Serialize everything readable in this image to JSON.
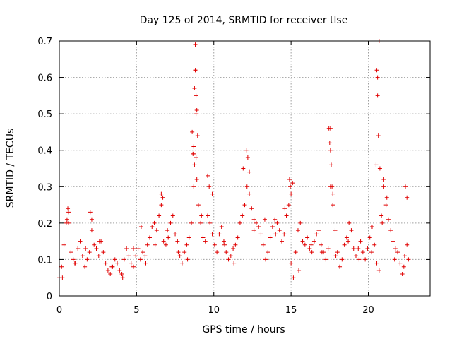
{
  "chart_data": {
    "type": "scatter",
    "title": "Day 125 of 2014, SRMTID for receiver tlse",
    "xlabel": "GPS time / hours",
    "ylabel": "SRMTID / TECUs",
    "xlim": [
      0,
      24
    ],
    "ylim": [
      0,
      0.7
    ],
    "xticks": [
      "0",
      "5",
      "10",
      "15",
      "20"
    ],
    "yticks": [
      "0",
      "0.1",
      "0.2",
      "0.3",
      "0.4",
      "0.5",
      "0.6",
      "0.7"
    ],
    "grid": true,
    "marker": "plus",
    "series": [
      {
        "name": "SRMTID",
        "color": "#e00000",
        "x": [
          0.0,
          0.15,
          0.3,
          0.45,
          0.6,
          0.75,
          0.9,
          1.05,
          1.2,
          1.35,
          1.5,
          1.65,
          1.8,
          1.95,
          2.1,
          2.25,
          2.4,
          2.55,
          2.7,
          2.85,
          3.0,
          3.15,
          3.3,
          3.45,
          3.6,
          3.75,
          3.9,
          4.05,
          4.2,
          4.35,
          4.5,
          4.65,
          4.8,
          4.95,
          5.1,
          5.25,
          5.4,
          5.55,
          5.7,
          5.85,
          6.0,
          6.15,
          6.3,
          6.45,
          6.6,
          6.75,
          6.9,
          7.05,
          7.2,
          7.35,
          7.5,
          7.65,
          7.8,
          7.95,
          8.1,
          8.25,
          8.4,
          8.55,
          8.7,
          8.85,
          9.0,
          9.15,
          9.3,
          9.45,
          9.6,
          9.75,
          9.9,
          10.05,
          10.2,
          10.35,
          10.5,
          10.65,
          10.8,
          10.95,
          11.1,
          11.25,
          11.4,
          11.55,
          11.7,
          11.85,
          12.0,
          12.15,
          12.3,
          12.45,
          12.6,
          12.75,
          12.9,
          13.05,
          13.2,
          13.35,
          13.5,
          13.65,
          13.8,
          13.95,
          14.1,
          14.25,
          14.4,
          14.55,
          14.7,
          14.85,
          15.0,
          15.15,
          15.3,
          15.45,
          15.6,
          15.75,
          15.9,
          16.05,
          16.2,
          16.35,
          16.5,
          16.65,
          16.8,
          16.95,
          17.1,
          17.25,
          17.4,
          17.55,
          17.7,
          17.85,
          18.0,
          18.15,
          18.3,
          18.45,
          18.6,
          18.75,
          18.9,
          19.05,
          19.2,
          19.35,
          19.5,
          19.65,
          19.8,
          19.95,
          20.1,
          20.25,
          20.4,
          20.55,
          20.7,
          20.85,
          21.0,
          21.15,
          21.3,
          21.45,
          21.6,
          21.75,
          21.9,
          22.05,
          22.2,
          22.35,
          22.5,
          22.6,
          0.5,
          0.55,
          0.6,
          2.0,
          2.1,
          5.3,
          6.6,
          6.7,
          8.6,
          8.7,
          8.75,
          8.8,
          8.85,
          8.9,
          8.95,
          8.8,
          8.7,
          8.85,
          8.75,
          8.9,
          9.6,
          9.7,
          11.9,
          12.1,
          12.2,
          12.3,
          14.9,
          15.0,
          15.1,
          17.45,
          17.5,
          17.55,
          17.6,
          17.65,
          17.7,
          20.55,
          20.6,
          20.65,
          20.7,
          20.75,
          20.6,
          20.5,
          21.0,
          21.2,
          22.4,
          22.5,
          17.55,
          14.95,
          8.65,
          8.8,
          0.2,
          1.0,
          1.7,
          2.6,
          3.4,
          4.1,
          4.8,
          5.6,
          6.2,
          7.0,
          7.7,
          8.3,
          9.2,
          9.9,
          10.7,
          11.3,
          12.6,
          13.3,
          14.0,
          14.6,
          15.5,
          16.3,
          17.0,
          17.9,
          18.7,
          19.4,
          20.2,
          20.9,
          21.7,
          22.3
        ],
        "y": [
          0.05,
          0.08,
          0.14,
          0.2,
          0.23,
          0.12,
          0.1,
          0.09,
          0.13,
          0.15,
          0.11,
          0.08,
          0.1,
          0.12,
          0.18,
          0.14,
          0.13,
          0.11,
          0.15,
          0.12,
          0.09,
          0.07,
          0.06,
          0.08,
          0.1,
          0.09,
          0.07,
          0.06,
          0.1,
          0.13,
          0.11,
          0.09,
          0.08,
          0.11,
          0.13,
          0.1,
          0.12,
          0.11,
          0.14,
          0.16,
          0.19,
          0.2,
          0.18,
          0.22,
          0.25,
          0.15,
          0.14,
          0.16,
          0.2,
          0.22,
          0.17,
          0.15,
          0.11,
          0.09,
          0.12,
          0.14,
          0.16,
          0.2,
          0.3,
          0.38,
          0.25,
          0.2,
          0.16,
          0.15,
          0.22,
          0.2,
          0.17,
          0.14,
          0.12,
          0.17,
          0.19,
          0.15,
          0.12,
          0.1,
          0.11,
          0.13,
          0.14,
          0.16,
          0.2,
          0.22,
          0.25,
          0.3,
          0.28,
          0.24,
          0.21,
          0.2,
          0.19,
          0.17,
          0.14,
          0.1,
          0.12,
          0.16,
          0.19,
          0.21,
          0.2,
          0.18,
          0.15,
          0.17,
          0.22,
          0.25,
          0.09,
          0.05,
          0.12,
          0.18,
          0.2,
          0.15,
          0.14,
          0.16,
          0.13,
          0.12,
          0.15,
          0.17,
          0.18,
          0.14,
          0.12,
          0.1,
          0.13,
          0.3,
          0.25,
          0.18,
          0.12,
          0.08,
          0.1,
          0.14,
          0.16,
          0.2,
          0.18,
          0.13,
          0.11,
          0.13,
          0.15,
          0.12,
          0.1,
          0.13,
          0.16,
          0.19,
          0.14,
          0.09,
          0.07,
          0.22,
          0.3,
          0.25,
          0.21,
          0.18,
          0.15,
          0.13,
          0.12,
          0.09,
          0.06,
          0.11,
          0.14,
          0.1,
          0.21,
          0.24,
          0.2,
          0.23,
          0.21,
          0.19,
          0.28,
          0.27,
          0.45,
          0.41,
          0.57,
          0.69,
          0.5,
          0.51,
          0.44,
          0.62,
          0.39,
          0.55,
          0.36,
          0.32,
          0.33,
          0.3,
          0.35,
          0.4,
          0.38,
          0.34,
          0.32,
          0.28,
          0.31,
          0.46,
          0.42,
          0.4,
          0.36,
          0.3,
          0.28,
          0.62,
          0.55,
          0.44,
          0.7,
          0.35,
          0.6,
          0.36,
          0.32,
          0.27,
          0.3,
          0.27,
          0.46,
          0.3,
          0.39,
          0.62,
          0.05,
          0.09,
          0.13,
          0.15,
          0.08,
          0.05,
          0.13,
          0.09,
          0.14,
          0.18,
          0.12,
          0.1,
          0.22,
          0.28,
          0.14,
          0.09,
          0.18,
          0.21,
          0.17,
          0.24,
          0.07,
          0.14,
          0.12,
          0.11,
          0.15,
          0.1,
          0.12,
          0.2,
          0.1,
          0.08
        ]
      }
    ]
  }
}
